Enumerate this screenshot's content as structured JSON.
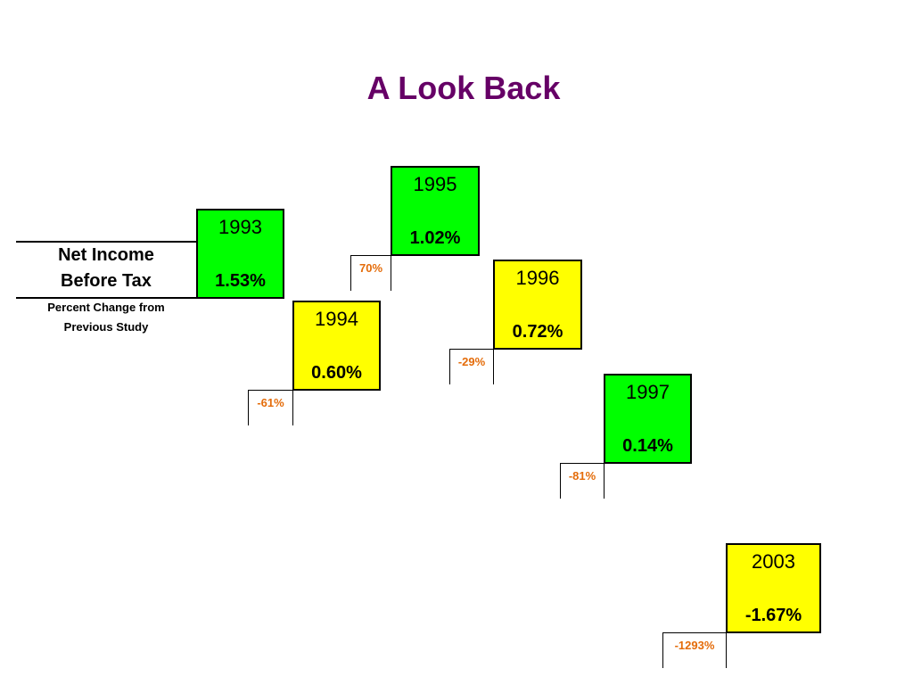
{
  "title": "A Look Back",
  "row_label": "Net Income Before Tax",
  "change_label": "Percent Change from Previous Study",
  "boxes": [
    {
      "year": "1993",
      "value": "1.53%",
      "color": "#00ff00"
    },
    {
      "year": "1994",
      "value": "0.60%",
      "change": "-61%",
      "color": "#ffff00"
    },
    {
      "year": "1995",
      "value": "1.02%",
      "change": "70%",
      "color": "#00ff00"
    },
    {
      "year": "1996",
      "value": "0.72%",
      "change": "-29%",
      "color": "#ffff00"
    },
    {
      "year": "1997",
      "value": "0.14%",
      "change": "-81%",
      "color": "#00ff00"
    },
    {
      "year": "2003",
      "value": "-1.67%",
      "change": "-1293%",
      "color": "#ffff00"
    }
  ]
}
